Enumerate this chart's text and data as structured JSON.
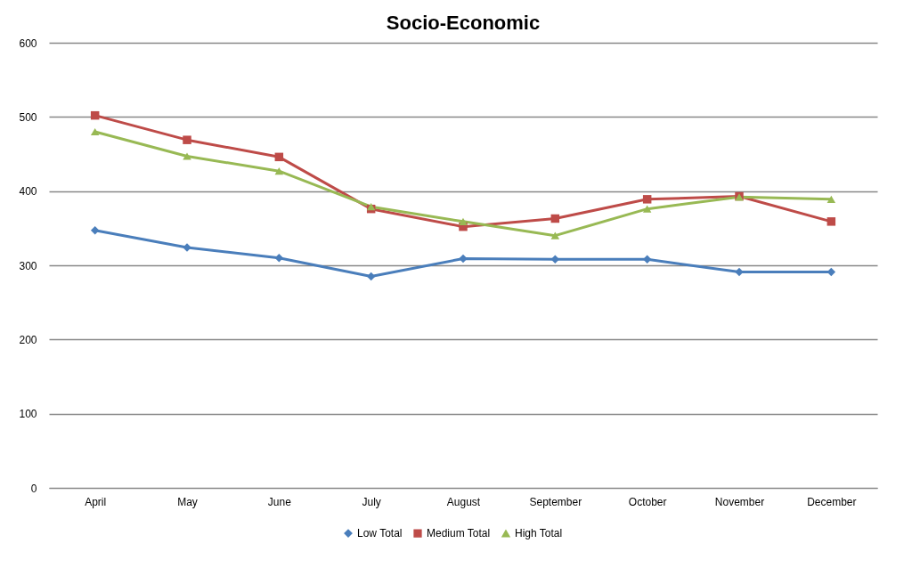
{
  "chart_data": {
    "type": "line",
    "title": "Socio-Economic",
    "categories": [
      "April",
      "May",
      "June",
      "July",
      "August",
      "September",
      "October",
      "November",
      "December"
    ],
    "series": [
      {
        "name": "Low Total",
        "color": "#4a7ebb",
        "marker": "diamond",
        "values": [
          347,
          324,
          310,
          285,
          309,
          308,
          308,
          291,
          291
        ]
      },
      {
        "name": "Medium Total",
        "color": "#be4b48",
        "marker": "square",
        "values": [
          502,
          469,
          446,
          376,
          352,
          363,
          389,
          393,
          359
        ]
      },
      {
        "name": "High Total",
        "color": "#98b954",
        "marker": "triangle",
        "values": [
          480,
          447,
          427,
          379,
          359,
          340,
          376,
          392,
          389
        ]
      }
    ],
    "ylim": [
      0,
      600
    ],
    "yticks": [
      0,
      100,
      200,
      300,
      400,
      500,
      600
    ],
    "grid": "y",
    "legend": "bottom",
    "line_style": "solid"
  }
}
